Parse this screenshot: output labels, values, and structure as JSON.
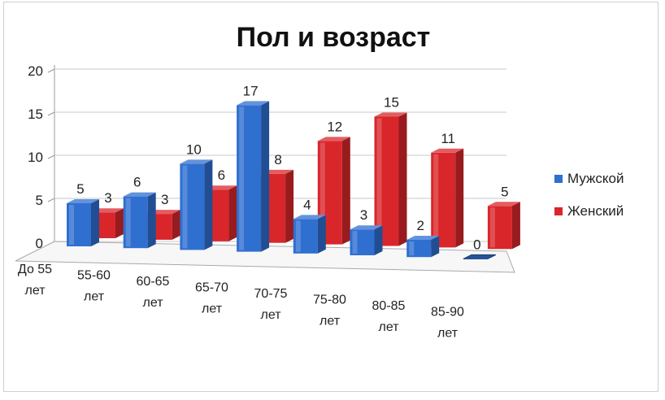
{
  "chart_data": {
    "type": "bar",
    "title": "Пол и возраст",
    "categories": [
      "До 55 лет",
      "55-60 лет",
      "60-65 лет",
      "65-70 лет",
      "70-75 лет",
      "75-80 лет",
      "80-85 лет",
      "85-90 лет"
    ],
    "series": [
      {
        "name": "Мужской",
        "values": [
          5,
          6,
          10,
          17,
          4,
          3,
          2,
          0
        ]
      },
      {
        "name": "Женский",
        "values": [
          3,
          3,
          6,
          8,
          12,
          15,
          11,
          5
        ]
      }
    ],
    "yticks": [
      "0",
      "5",
      "10",
      "15",
      "20"
    ],
    "ylim": [
      0,
      20
    ],
    "grid": true,
    "legend_position": "right",
    "colors": {
      "Мужской": "#2f6fd0",
      "Женский": "#d9262b"
    }
  }
}
